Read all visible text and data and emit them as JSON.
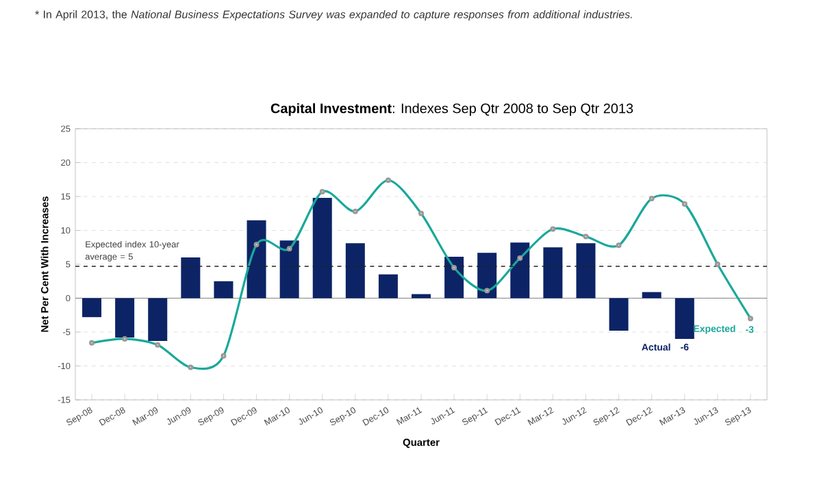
{
  "chart_data": {
    "type": "bar",
    "title": "**Capital Investment**: Indexes Sep Qtr 2008 to Sep Qtr 2013",
    "xlabel": "Quarter",
    "ylabel": "Net Per Cent With Increases",
    "annotations": [
      "* In April 2013, the *National Business Expectations Survey was expanded to capture responses from additional industries.*"
    ],
    "categories": [
      "Sep-08",
      "Dec-08",
      "Mar-09",
      "Jun-09",
      "Sep-09",
      "Dec-09",
      "Mar-10",
      "Jun-10",
      "Sep-10",
      "Dec-10",
      "Mar-11",
      "Jun-11",
      "Sep-11",
      "Dec-11",
      "Mar-12",
      "Jun-12",
      "Sep-12",
      "Dec-12",
      "Mar-13",
      "Jun-13",
      "Sep-13"
    ],
    "series": [
      {
        "name": "Actual",
        "color": "#0c2466",
        "values": [
          -2.8,
          -5.8,
          -6.3,
          6,
          2.5,
          11.5,
          8.5,
          14.8,
          8.1,
          3.5,
          0.6,
          6.1,
          6.7,
          8.2,
          7.5,
          8.1,
          -4.8,
          0.9,
          -6,
          null,
          null
        ],
        "value_labels": [
          null,
          null,
          null,
          null,
          null,
          null,
          null,
          null,
          null,
          null,
          null,
          null,
          null,
          null,
          null,
          null,
          null,
          null,
          "-6",
          null,
          null
        ]
      },
      {
        "name": "Expected",
        "type": "line",
        "color": "#1aa89a",
        "values": [
          -6.6,
          -6,
          -6.9,
          -10.2,
          -8.5,
          7.9,
          7.3,
          15.7,
          12.8,
          17.4,
          12.5,
          4.5,
          1.1,
          5.9,
          10.2,
          9.1,
          7.8,
          14.7,
          13.9,
          5,
          -3
        ],
        "value_labels": [
          null,
          null,
          null,
          null,
          null,
          null,
          null,
          null,
          null,
          null,
          null,
          null,
          null,
          null,
          null,
          null,
          null,
          null,
          null,
          null,
          "-3"
        ]
      }
    ],
    "ylim": [
      -15,
      25
    ],
    "yticks": [
      -15,
      -10,
      -5,
      0,
      5,
      10,
      15,
      20,
      25
    ],
    "ref_lines": [
      {
        "axis": "y",
        "value": 4.7,
        "label": "Expected index 10-year average = 5",
        "color": "#222222",
        "line_style": "dashed"
      }
    ],
    "grid": "y",
    "marker": "circle"
  }
}
